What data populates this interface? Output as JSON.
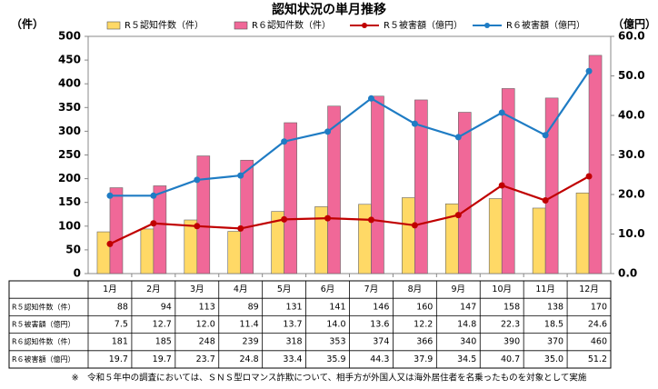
{
  "chart_data": {
    "type": "bar",
    "title": "認知状況の単月推移",
    "y_label": "（件）",
    "y2_label": "（億円）",
    "categories": [
      "1月",
      "2月",
      "3月",
      "4月",
      "5月",
      "6月",
      "7月",
      "8月",
      "9月",
      "10月",
      "11月",
      "12月"
    ],
    "ylim": [
      0,
      500
    ],
    "yticks": [
      0,
      50,
      100,
      150,
      200,
      250,
      300,
      350,
      400,
      450,
      500
    ],
    "y2lim": [
      0,
      60
    ],
    "y2ticks": [
      {
        "value": 0,
        "label": "0.0"
      },
      {
        "value": 10,
        "label": "10.0"
      },
      {
        "value": 20,
        "label": "20.0"
      },
      {
        "value": 30,
        "label": "30.0"
      },
      {
        "value": 40,
        "label": "40.0"
      },
      {
        "value": 50,
        "label": "50.0"
      },
      {
        "value": 60,
        "label": "60.0"
      }
    ],
    "grid": false,
    "series": [
      {
        "name": "R５認知件数（件）",
        "type": "bar",
        "color": "#ffd966",
        "values": [
          88,
          94,
          113,
          89,
          131,
          141,
          146,
          160,
          147,
          158,
          138,
          170
        ]
      },
      {
        "name": "R６認知件数（件）",
        "type": "bar",
        "color": "#f06898",
        "values": [
          181,
          185,
          248,
          239,
          318,
          353,
          374,
          366,
          340,
          390,
          370,
          460
        ]
      },
      {
        "name": "R５被害額（億円）",
        "type": "line",
        "axis": "y2",
        "color": "#c00000",
        "values": [
          7.5,
          12.7,
          12.0,
          11.4,
          13.7,
          14.0,
          13.6,
          12.2,
          14.8,
          22.3,
          18.5,
          24.6
        ],
        "value_labels": [
          "7.5",
          "12.7",
          "12.0",
          "11.4",
          "13.7",
          "14.0",
          "13.6",
          "12.2",
          "14.8",
          "22.3",
          "18.5",
          "24.6"
        ]
      },
      {
        "name": "R６被害額（億円）",
        "type": "line",
        "axis": "y2",
        "color": "#1f7cc4",
        "values": [
          19.7,
          19.7,
          23.7,
          24.8,
          33.4,
          35.9,
          44.3,
          37.9,
          34.5,
          40.7,
          35.0,
          51.2
        ],
        "value_labels": [
          "19.7",
          "19.7",
          "23.7",
          "24.8",
          "33.4",
          "35.9",
          "44.3",
          "37.9",
          "34.5",
          "40.7",
          "35.0",
          "51.2"
        ]
      }
    ],
    "note": "※　令和５年中の調査においては、ＳＮＳ型ロマンス詐欺について、相手方が外国人又は海外居住者を名乗ったものを対象として実施"
  }
}
